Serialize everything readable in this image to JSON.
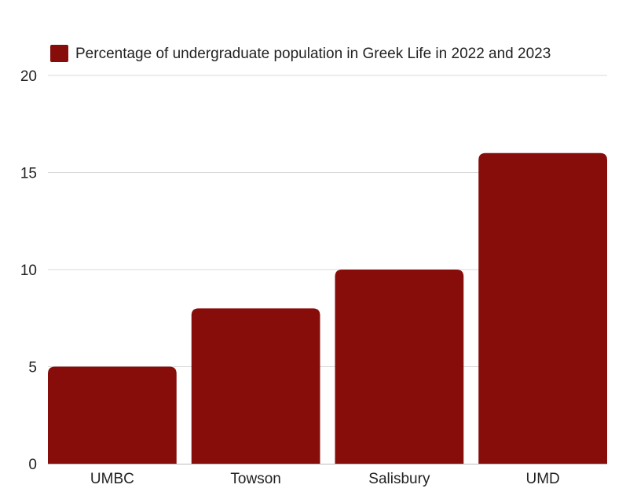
{
  "chart_data": {
    "type": "bar",
    "title": "",
    "xlabel": "",
    "ylabel": "",
    "categories": [
      "UMBC",
      "Towson",
      "Salisbury",
      "UMD"
    ],
    "series": [
      {
        "name": "Percentage of undergraduate population in Greek Life in 2022 and 2023",
        "values": [
          5,
          8,
          10,
          16
        ],
        "color": "#870d0b"
      }
    ],
    "ylim": [
      0,
      20
    ],
    "yticks": [
      0,
      5,
      10,
      15,
      20
    ],
    "ytick_labels": [
      "0",
      "5",
      "10",
      "15",
      "20"
    ],
    "grid": true,
    "legend_position": "top"
  }
}
